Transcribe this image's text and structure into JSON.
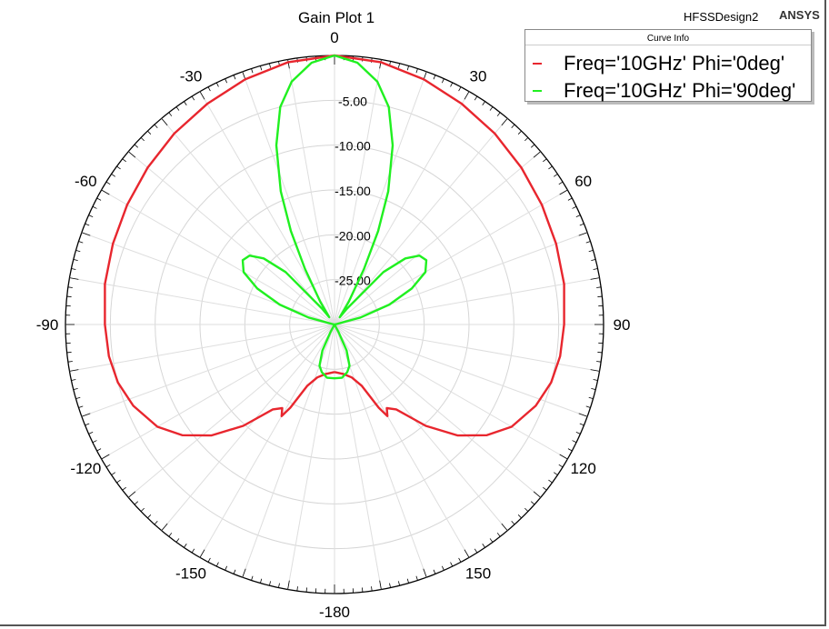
{
  "title": "Gain Plot 1",
  "design_name": "HFSSDesign2",
  "logo_text": "ANSYS",
  "legend": {
    "title": "Curve Info",
    "items": [
      {
        "label": "Freq='10GHz' Phi='0deg'",
        "color": "#e8262e"
      },
      {
        "label": "Freq='10GHz' Phi='90deg'",
        "color": "#20f020"
      }
    ]
  },
  "chart_data": {
    "type": "polar",
    "title": "Gain Plot 1",
    "angle_unit": "deg",
    "angle_zero": "top",
    "angle_direction": "clockwise",
    "angle_ticks": [
      0,
      30,
      60,
      90,
      120,
      150,
      -180,
      -150,
      -120,
      -90,
      -60,
      -30
    ],
    "radial_ticks": [
      -5.0,
      -10.0,
      -15.0,
      -20.0,
      -25.0
    ],
    "radial_tick_labels": [
      "-5.00",
      "-10.00",
      "-15.00",
      "-20.00",
      "-25.00"
    ],
    "radial_range": [
      -30,
      0
    ],
    "grid": true,
    "legend_position": "top-right",
    "series": [
      {
        "name": "Freq='10GHz' Phi='0deg'",
        "color": "#e8262e",
        "points": [
          [
            -180,
            -24.7
          ],
          [
            -170,
            -24.4
          ],
          [
            -162,
            -23.8
          ],
          [
            -156,
            -22.5
          ],
          [
            -152,
            -19.5
          ],
          [
            -150,
            -18.2
          ],
          [
            -148,
            -19.0
          ],
          [
            -144,
            -18.3
          ],
          [
            -138,
            -14.8
          ],
          [
            -132,
            -11.5
          ],
          [
            -126,
            -9.0
          ],
          [
            -120,
            -7.2
          ],
          [
            -112,
            -5.8
          ],
          [
            -105,
            -5.0
          ],
          [
            -98,
            -4.6
          ],
          [
            -90,
            -4.4
          ],
          [
            -80,
            -4.0
          ],
          [
            -70,
            -3.7
          ],
          [
            -60,
            -3.3
          ],
          [
            -50,
            -2.8
          ],
          [
            -40,
            -2.2
          ],
          [
            -30,
            -1.6
          ],
          [
            -20,
            -0.9
          ],
          [
            -10,
            -0.3
          ],
          [
            0,
            0.0
          ],
          [
            10,
            -0.3
          ],
          [
            20,
            -0.9
          ],
          [
            30,
            -1.6
          ],
          [
            40,
            -2.2
          ],
          [
            50,
            -2.8
          ],
          [
            60,
            -3.3
          ],
          [
            70,
            -3.7
          ],
          [
            80,
            -4.0
          ],
          [
            90,
            -4.4
          ],
          [
            98,
            -4.6
          ],
          [
            105,
            -5.0
          ],
          [
            112,
            -5.8
          ],
          [
            120,
            -7.2
          ],
          [
            126,
            -9.0
          ],
          [
            132,
            -11.5
          ],
          [
            138,
            -14.8
          ],
          [
            144,
            -18.3
          ],
          [
            148,
            -19.0
          ],
          [
            150,
            -18.2
          ],
          [
            152,
            -19.5
          ],
          [
            156,
            -22.5
          ],
          [
            162,
            -23.8
          ],
          [
            170,
            -24.4
          ],
          [
            180,
            -24.7
          ]
        ]
      },
      {
        "name": "Freq='10GHz' Phi='90deg'",
        "color": "#20f020",
        "points": [
          [
            0,
            0.0
          ],
          [
            5,
            -0.7
          ],
          [
            10,
            -2.5
          ],
          [
            14,
            -5.0
          ],
          [
            18,
            -9.0
          ],
          [
            22,
            -14.0
          ],
          [
            25,
            -18.5
          ],
          [
            28,
            -23.0
          ],
          [
            32,
            -27.0
          ],
          [
            36,
            -29.0
          ],
          [
            38,
            -27.8
          ],
          [
            43,
            -22.0
          ],
          [
            47,
            -19.2
          ],
          [
            51,
            -17.8
          ],
          [
            55,
            -17.5
          ],
          [
            60,
            -18.3
          ],
          [
            65,
            -20.5
          ],
          [
            70,
            -23.5
          ],
          [
            75,
            -27.0
          ],
          [
            78,
            -29.8
          ],
          [
            81,
            -30.0
          ],
          [
            150,
            -30.0
          ],
          [
            152,
            -29.0
          ],
          [
            155,
            -26.8
          ],
          [
            160,
            -25.1
          ],
          [
            165,
            -24.5
          ],
          [
            172,
            -24.0
          ],
          [
            180,
            -24.0
          ],
          [
            -172,
            -24.0
          ],
          [
            -165,
            -24.5
          ],
          [
            -160,
            -25.1
          ],
          [
            -155,
            -26.8
          ],
          [
            -152,
            -29.0
          ],
          [
            -150,
            -30.0
          ],
          [
            -81,
            -30.0
          ],
          [
            -78,
            -29.8
          ],
          [
            -75,
            -27.0
          ],
          [
            -70,
            -23.5
          ],
          [
            -65,
            -20.5
          ],
          [
            -60,
            -18.3
          ],
          [
            -55,
            -17.5
          ],
          [
            -51,
            -17.8
          ],
          [
            -47,
            -19.2
          ],
          [
            -43,
            -22.0
          ],
          [
            -38,
            -27.8
          ],
          [
            -36,
            -29.0
          ],
          [
            -32,
            -27.0
          ],
          [
            -28,
            -23.0
          ],
          [
            -25,
            -18.5
          ],
          [
            -22,
            -14.0
          ],
          [
            -18,
            -9.0
          ],
          [
            -14,
            -5.0
          ],
          [
            -10,
            -2.5
          ],
          [
            -5,
            -0.7
          ],
          [
            0,
            0.0
          ]
        ]
      }
    ]
  }
}
